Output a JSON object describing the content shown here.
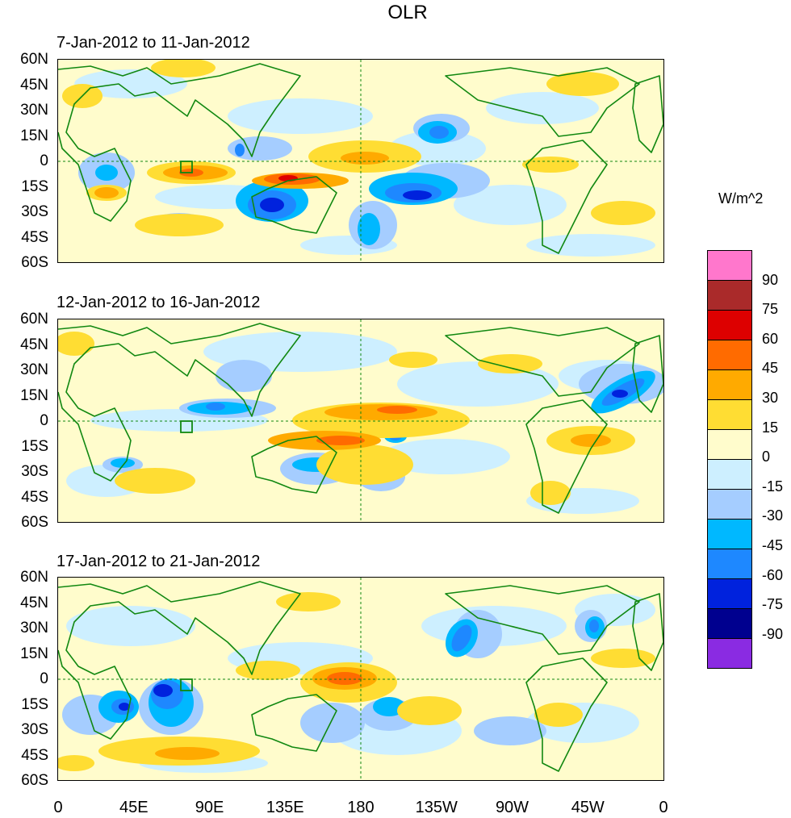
{
  "title": "OLR",
  "units": "W/m^2",
  "panels": [
    {
      "label": "7-Jan-2012 to 11-Jan-2012"
    },
    {
      "label": "12-Jan-2012 to 16-Jan-2012"
    },
    {
      "label": "17-Jan-2012 to 21-Jan-2012"
    }
  ],
  "lat_labels": [
    "60N",
    "45N",
    "30N",
    "15N",
    "0",
    "15S",
    "30S",
    "45S",
    "60S"
  ],
  "lon_labels": [
    "0",
    "45E",
    "90E",
    "135E",
    "180",
    "135W",
    "90W",
    "45W",
    "0"
  ],
  "legend": {
    "levels": [
      "90",
      "75",
      "60",
      "45",
      "30",
      "15",
      "0",
      "-15",
      "-30",
      "-45",
      "-60",
      "-75",
      "-90"
    ],
    "colors": [
      "#ff77cc",
      "#aa2a2a",
      "#dd0000",
      "#ff6b00",
      "#ffaa00",
      "#ffdd33",
      "#fffccc",
      "#cdefff",
      "#a5cdff",
      "#00b8ff",
      "#1e88ff",
      "#0022dd",
      "#00008f",
      "#8a2be2"
    ]
  },
  "colors": {
    "coast": "#118811",
    "background_fill": "#fffccc"
  }
}
